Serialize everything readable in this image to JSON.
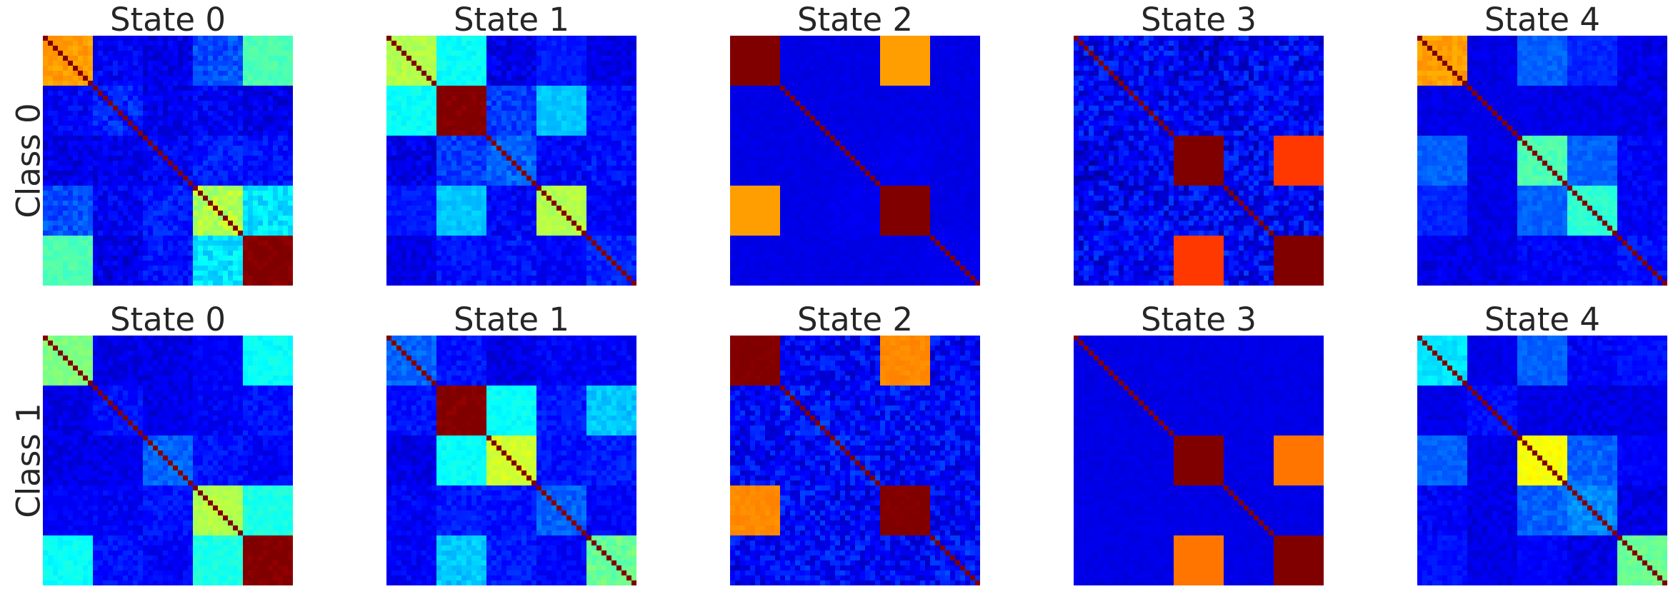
{
  "figure": {
    "rows": [
      {
        "label": "Class 0",
        "panels": [
          {
            "title": "State 0",
            "block_means": [
              [
                0.72,
                0.12,
                0.1,
                0.2,
                0.45
              ],
              [
                0.12,
                0.16,
                0.1,
                0.12,
                0.1
              ],
              [
                0.1,
                0.1,
                0.12,
                0.15,
                0.14
              ],
              [
                0.2,
                0.12,
                0.15,
                0.55,
                0.35
              ],
              [
                0.45,
                0.1,
                0.14,
                0.35,
                1.0
              ]
            ],
            "block_noise": [
              0.02,
              0.04,
              0.04,
              0.04,
              0.02
            ]
          },
          {
            "title": "State 1",
            "block_means": [
              [
                0.55,
                0.38,
                0.1,
                0.15,
                0.1
              ],
              [
                0.38,
                1.0,
                0.18,
                0.32,
                0.14
              ],
              [
                0.1,
                0.18,
                0.22,
                0.12,
                0.14
              ],
              [
                0.15,
                0.32,
                0.12,
                0.55,
                0.12
              ],
              [
                0.1,
                0.14,
                0.14,
                0.12,
                0.16
              ]
            ],
            "block_noise": [
              0.02,
              0.02,
              0.04,
              0.02,
              0.03
            ]
          },
          {
            "title": "State 2",
            "block_means": [
              [
                1.0,
                0.1,
                0.1,
                0.72,
                0.1
              ],
              [
                0.1,
                0.1,
                0.1,
                0.1,
                0.1
              ],
              [
                0.1,
                0.1,
                0.1,
                0.11,
                0.1
              ],
              [
                0.72,
                0.1,
                0.11,
                1.0,
                0.1
              ],
              [
                0.1,
                0.1,
                0.1,
                0.1,
                0.11
              ]
            ],
            "block_noise": [
              0.0,
              0.01,
              0.01,
              0.0,
              0.01
            ]
          },
          {
            "title": "State 3",
            "block_means": [
              [
                0.12,
                0.12,
                0.1,
                0.12,
                0.12
              ],
              [
                0.12,
                0.12,
                0.12,
                0.12,
                0.12
              ],
              [
                0.1,
                0.12,
                1.0,
                0.12,
                0.82
              ],
              [
                0.12,
                0.12,
                0.12,
                0.12,
                0.12
              ],
              [
                0.12,
                0.12,
                0.82,
                0.12,
                1.0
              ]
            ],
            "block_noise": [
              0.07,
              0.06,
              0.0,
              0.07,
              0.0
            ]
          },
          {
            "title": "State 4",
            "block_means": [
              [
                0.72,
                0.1,
                0.22,
                0.16,
                0.1
              ],
              [
                0.1,
                0.1,
                0.1,
                0.1,
                0.1
              ],
              [
                0.22,
                0.1,
                0.45,
                0.22,
                0.12
              ],
              [
                0.16,
                0.1,
                0.22,
                0.42,
                0.12
              ],
              [
                0.1,
                0.1,
                0.12,
                0.12,
                0.14
              ]
            ],
            "block_noise": [
              0.02,
              0.01,
              0.02,
              0.02,
              0.03
            ]
          }
        ]
      },
      {
        "label": "Class 1",
        "panels": [
          {
            "title": "State 0",
            "block_means": [
              [
                0.5,
                0.1,
                0.1,
                0.12,
                0.38
              ],
              [
                0.1,
                0.14,
                0.1,
                0.12,
                0.14
              ],
              [
                0.1,
                0.1,
                0.22,
                0.14,
                0.12
              ],
              [
                0.12,
                0.12,
                0.14,
                0.55,
                0.4
              ],
              [
                0.38,
                0.14,
                0.12,
                0.4,
                1.0
              ]
            ],
            "block_noise": [
              0.02,
              0.03,
              0.03,
              0.02,
              0.02
            ]
          },
          {
            "title": "State 1",
            "block_means": [
              [
                0.22,
                0.14,
                0.1,
                0.12,
                0.12
              ],
              [
                0.14,
                1.0,
                0.38,
                0.15,
                0.32
              ],
              [
                0.1,
                0.38,
                0.58,
                0.14,
                0.15
              ],
              [
                0.12,
                0.15,
                0.14,
                0.22,
                0.12
              ],
              [
                0.12,
                0.32,
                0.15,
                0.12,
                0.48
              ]
            ],
            "block_noise": [
              0.03,
              0.02,
              0.02,
              0.03,
              0.03
            ]
          },
          {
            "title": "State 2",
            "block_means": [
              [
                1.0,
                0.12,
                0.12,
                0.74,
                0.12
              ],
              [
                0.12,
                0.14,
                0.12,
                0.13,
                0.13
              ],
              [
                0.12,
                0.12,
                0.14,
                0.12,
                0.13
              ],
              [
                0.74,
                0.13,
                0.12,
                1.0,
                0.12
              ],
              [
                0.12,
                0.13,
                0.13,
                0.12,
                0.14
              ]
            ],
            "block_noise": [
              0.01,
              0.06,
              0.06,
              0.01,
              0.06
            ]
          },
          {
            "title": "State 3",
            "block_means": [
              [
                0.1,
                0.1,
                0.1,
                0.1,
                0.1
              ],
              [
                0.1,
                0.1,
                0.1,
                0.1,
                0.1
              ],
              [
                0.1,
                0.1,
                1.0,
                0.1,
                0.76
              ],
              [
                0.1,
                0.1,
                0.1,
                0.1,
                0.1
              ],
              [
                0.1,
                0.1,
                0.76,
                0.1,
                1.0
              ]
            ],
            "block_noise": [
              0.01,
              0.01,
              0.0,
              0.01,
              0.0
            ]
          },
          {
            "title": "State 4",
            "block_means": [
              [
                0.35,
                0.1,
                0.22,
                0.12,
                0.14
              ],
              [
                0.1,
                0.14,
                0.1,
                0.1,
                0.1
              ],
              [
                0.22,
                0.1,
                0.62,
                0.22,
                0.12
              ],
              [
                0.12,
                0.1,
                0.22,
                0.26,
                0.1
              ],
              [
                0.14,
                0.1,
                0.12,
                0.1,
                0.48
              ]
            ],
            "block_noise": [
              0.02,
              0.02,
              0.02,
              0.03,
              0.02
            ]
          }
        ]
      }
    ]
  },
  "chart_data": {
    "type": "heatmap",
    "layout": "2 rows x 5 columns",
    "colormap": "jet",
    "value_range": [
      0,
      1
    ],
    "block_count": 5,
    "nodes_per_block": 10,
    "grid": false,
    "axes_ticks": "none",
    "colorbar": "none",
    "description": "values are approximate block means of each 50x50 correlation matrix (diagonal = 1)"
  }
}
